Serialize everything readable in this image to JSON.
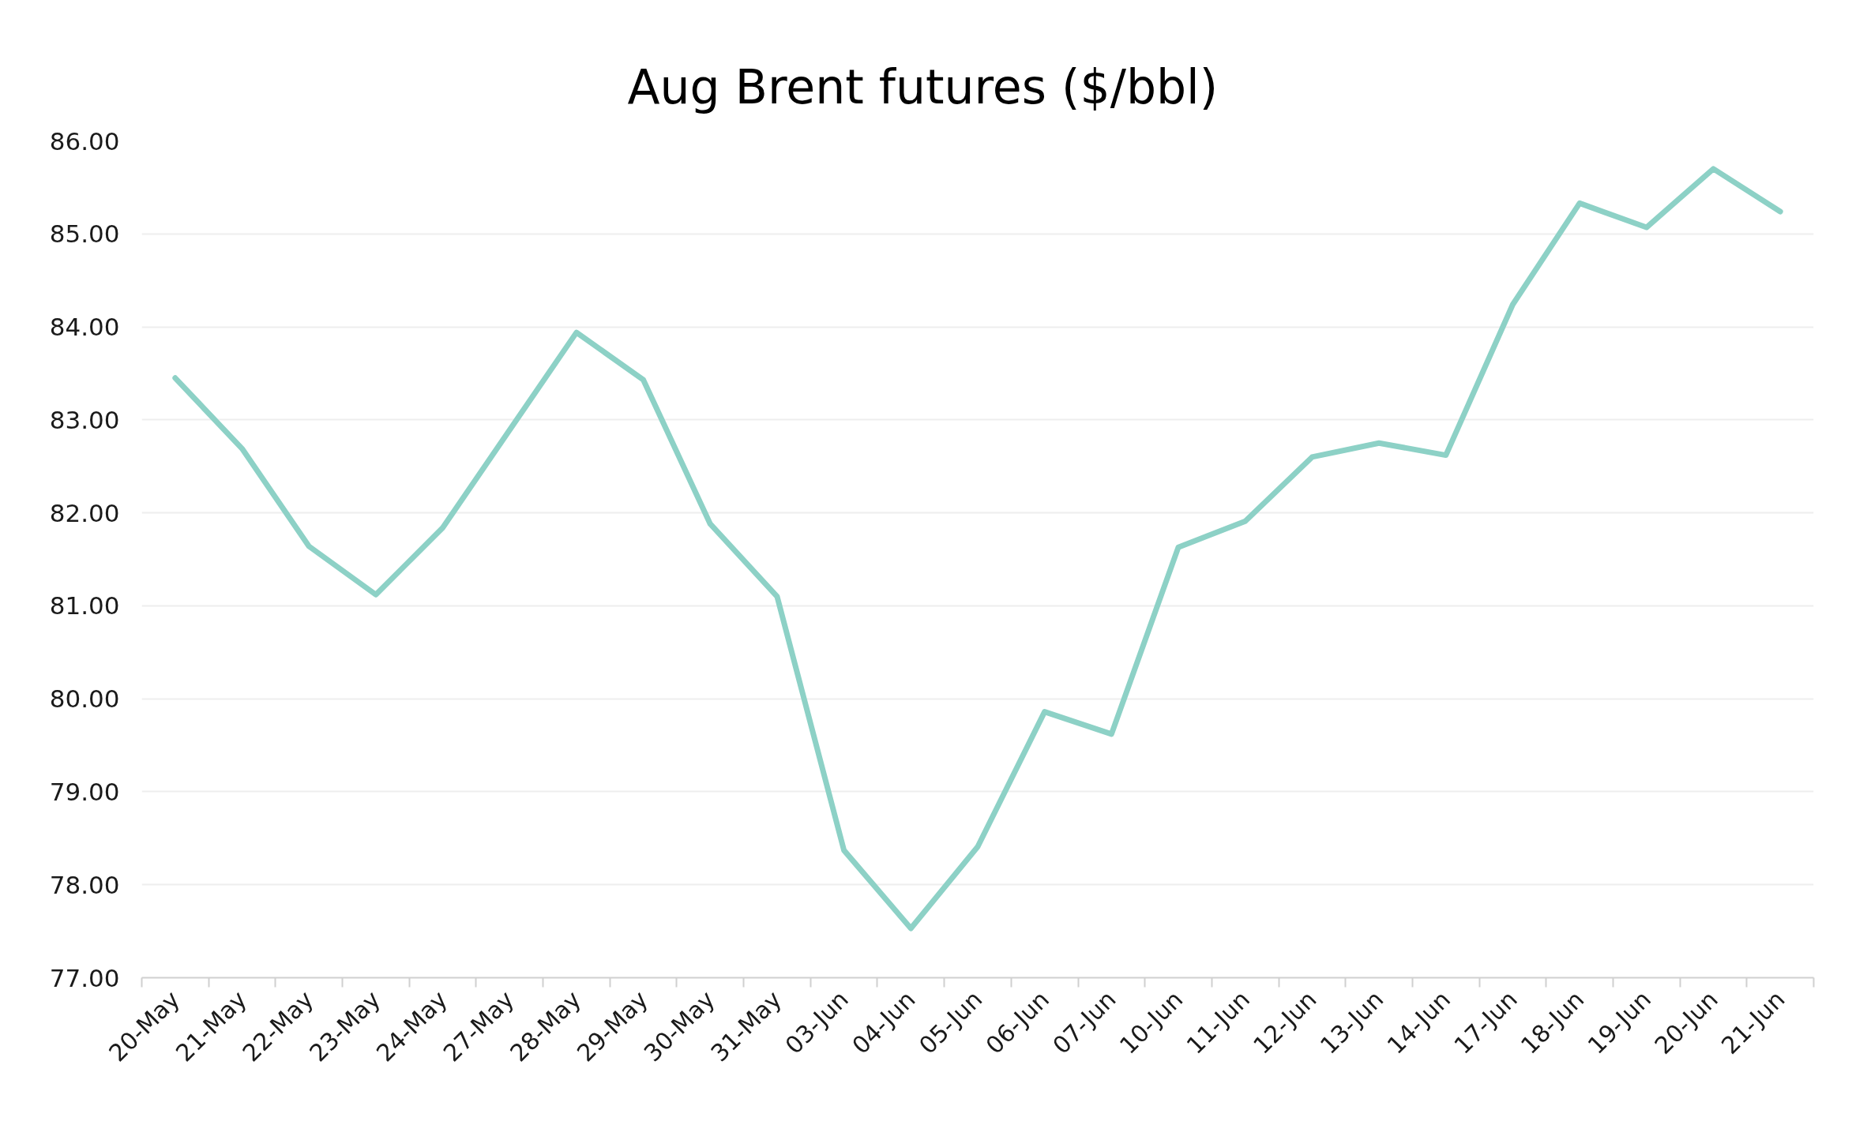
{
  "chart_data": {
    "type": "line",
    "title": "Aug Brent futures ($/bbl)",
    "categories": [
      "20-May",
      "21-May",
      "22-May",
      "23-May",
      "24-May",
      "27-May",
      "28-May",
      "29-May",
      "30-May",
      "31-May",
      "03-Jun",
      "04-Jun",
      "05-Jun",
      "06-Jun",
      "07-Jun",
      "10-Jun",
      "11-Jun",
      "12-Jun",
      "13-Jun",
      "14-Jun",
      "17-Jun",
      "18-Jun",
      "19-Jun",
      "20-Jun",
      "21-Jun"
    ],
    "series": [
      {
        "color": "#8dd1c6",
        "values": [
          83.45,
          82.69,
          81.64,
          81.12,
          81.84,
          82.89,
          83.94,
          83.43,
          81.88,
          81.1,
          78.37,
          77.53,
          78.41,
          79.86,
          79.62,
          81.63,
          81.91,
          82.6,
          82.75,
          82.62,
          84.24,
          85.33,
          85.07,
          85.7,
          85.24
        ]
      }
    ],
    "ylim": [
      77,
      86
    ],
    "yticks": [
      {
        "value": 77,
        "label": "77.00"
      },
      {
        "value": 78,
        "label": "78.00"
      },
      {
        "value": 79,
        "label": "79.00"
      },
      {
        "value": 80,
        "label": "80.00"
      },
      {
        "value": 81,
        "label": "81.00"
      },
      {
        "value": 82,
        "label": "82.00"
      },
      {
        "value": 83,
        "label": "83.00"
      },
      {
        "value": 84,
        "label": "84.00"
      },
      {
        "value": 85,
        "label": "85.00"
      },
      {
        "value": 86,
        "label": "86.00"
      }
    ],
    "grid": "y",
    "line_style": "solid"
  }
}
